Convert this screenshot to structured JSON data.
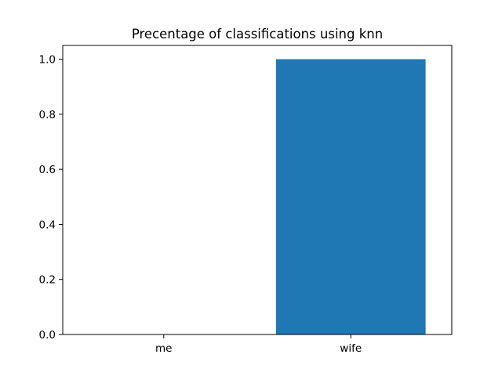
{
  "chart_data": {
    "type": "bar",
    "title": "Precentage of classifications using knn",
    "xlabel": "",
    "ylabel": "",
    "categories": [
      "me",
      "wife"
    ],
    "values": [
      0.0,
      1.0
    ],
    "ylim": [
      0,
      1.05
    ],
    "yticks": [
      "0.0",
      "0.2",
      "0.4",
      "0.6",
      "0.8",
      "1.0"
    ],
    "bar_color": "#1f77b4",
    "grid": false,
    "legend": "none"
  }
}
